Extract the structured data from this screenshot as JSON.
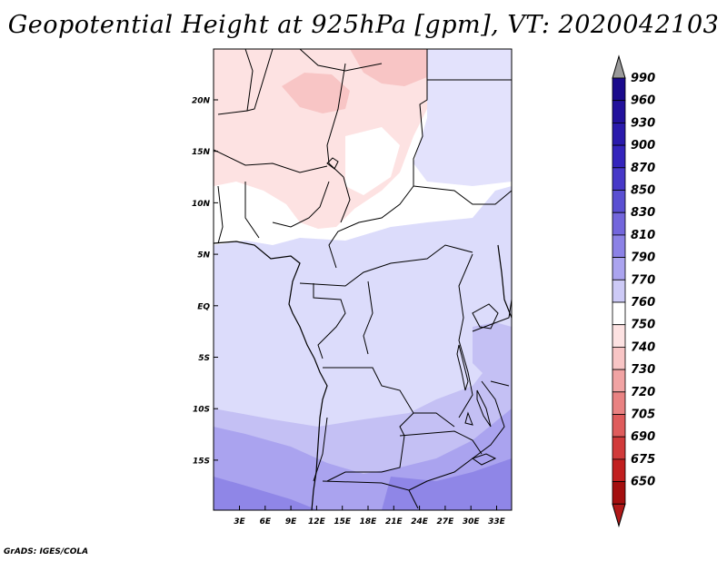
{
  "title": "Geopotential Height at 925hPa [gpm], VT: 2020042103",
  "credit": "GrADS: IGES/COLA",
  "map": {
    "lat_labels": [
      "20N",
      "15N",
      "10N",
      "5N",
      "EQ",
      "5S",
      "10S",
      "15S"
    ],
    "lon_labels": [
      "3E",
      "6E",
      "9E",
      "12E",
      "15E",
      "18E",
      "21E",
      "24E",
      "27E",
      "30E",
      "33E"
    ]
  },
  "legend": {
    "levels": [
      "990",
      "960",
      "930",
      "900",
      "870",
      "850",
      "830",
      "810",
      "790",
      "770",
      "760",
      "750",
      "740",
      "730",
      "720",
      "705",
      "690",
      "675",
      "650"
    ],
    "colors": [
      "#1a0a8c",
      "#22119c",
      "#2a1aac",
      "#3424bc",
      "#4738c8",
      "#5a4fd2",
      "#7366dc",
      "#8c82e6",
      "#aba4ef",
      "#cdcaf6",
      "#ffffff",
      "#fde2e2",
      "#f8c5c5",
      "#f1a3a3",
      "#e98282",
      "#df5c5c",
      "#d13a3a",
      "#c11f1f",
      "#a40f0f"
    ],
    "top_arrow_color": "#9a9a9a",
    "bottom_arrow_color": "#b01818"
  }
}
